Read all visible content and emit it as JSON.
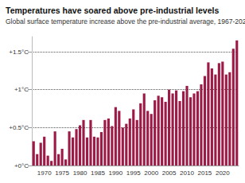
{
  "chart_data": {
    "type": "bar",
    "title": "Temperatures have soared above pre-industrial levels",
    "subtitle": "Global surface temperature increase above the pre-industrial average, 1967-2024",
    "categories": [
      null,
      null,
      null,
      "1970",
      null,
      null,
      null,
      null,
      "1975",
      null,
      null,
      null,
      null,
      "1980",
      null,
      null,
      null,
      null,
      "1985",
      null,
      null,
      null,
      null,
      "1990",
      null,
      null,
      null,
      null,
      "1995",
      null,
      null,
      null,
      null,
      "2000",
      null,
      null,
      null,
      null,
      "2005",
      null,
      null,
      null,
      null,
      "2010",
      null,
      null,
      null,
      null,
      "2015",
      null,
      null,
      null,
      null,
      "2020",
      null,
      null,
      null,
      null
    ],
    "values": [
      0.32,
      0.15,
      0.3,
      0.38,
      0.13,
      0.06,
      0.45,
      0.15,
      0.22,
      0.08,
      0.45,
      0.37,
      0.48,
      0.53,
      0.6,
      0.37,
      0.6,
      0.38,
      0.37,
      0.44,
      0.6,
      0.62,
      0.52,
      0.77,
      0.72,
      0.5,
      0.55,
      0.62,
      0.74,
      0.6,
      0.82,
      0.95,
      0.72,
      0.68,
      0.86,
      0.92,
      0.9,
      0.84,
      1.0,
      0.95,
      0.99,
      0.85,
      0.98,
      1.05,
      0.9,
      0.95,
      0.98,
      1.07,
      1.18,
      1.36,
      1.28,
      1.2,
      1.35,
      1.37,
      1.2,
      1.23,
      1.54,
      1.65
    ],
    "color": "#9c1a45",
    "ylim": [
      0,
      1.7
    ],
    "yticks": [
      {
        "value": 0,
        "label": "+0°C"
      },
      {
        "value": 0.5,
        "label": "+0.5°C"
      },
      {
        "value": 1,
        "label": "+1°C"
      },
      {
        "value": 1.5,
        "label": "+1.5°C"
      }
    ],
    "grid": true
  }
}
